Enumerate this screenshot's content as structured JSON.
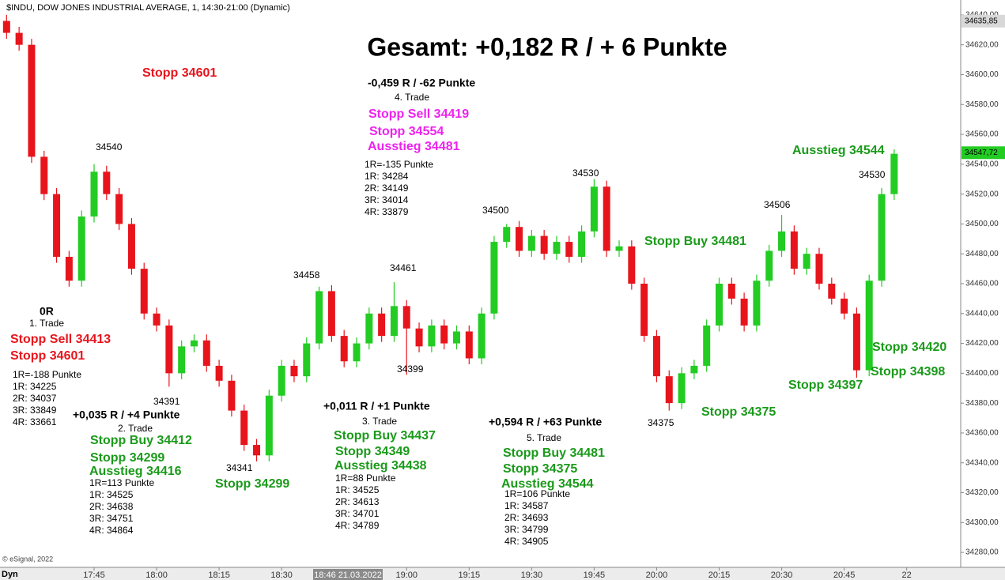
{
  "chart_data": {
    "type": "candlestick",
    "title": "Gesamt: +0,182 R / + 6 Punkte",
    "header": "$INDU, DOW JONES INDUSTRIAL AVERAGE, 1, 14:30-21:00 (Dynamic)",
    "copyright": "© eSignal, 2022",
    "mode_label": "Dyn",
    "cursor_label": "18:46 21.03.2022",
    "up_color": "#22cc22",
    "down_color": "#e8141c",
    "x": [
      "17:21",
      "17:24",
      "17:27",
      "17:30",
      "17:33",
      "17:36",
      "17:39",
      "17:42",
      "17:45",
      "17:48",
      "17:51",
      "17:54",
      "17:57",
      "18:00",
      "18:03",
      "18:06",
      "18:09",
      "18:12",
      "18:15",
      "18:18",
      "18:21",
      "18:24",
      "18:27",
      "18:30",
      "18:33",
      "18:36",
      "18:39",
      "18:42",
      "18:45",
      "18:48",
      "18:51",
      "18:54",
      "18:57",
      "19:00",
      "19:03",
      "19:06",
      "19:09",
      "19:12",
      "19:15",
      "19:18",
      "19:21",
      "19:24",
      "19:27",
      "19:30",
      "19:33",
      "19:36",
      "19:39",
      "19:42",
      "19:45",
      "19:48",
      "19:51",
      "19:54",
      "19:57",
      "20:00",
      "20:03",
      "20:06",
      "20:09",
      "20:12",
      "20:15",
      "20:18",
      "20:21",
      "20:24",
      "20:27",
      "20:30",
      "20:33",
      "20:36",
      "20:39",
      "20:42",
      "20:45",
      "20:48",
      "20:51",
      "20:54",
      "20:57"
    ],
    "open": [
      34630,
      34636,
      34628,
      34620,
      34545,
      34520,
      34478,
      34462,
      34505,
      34535,
      34520,
      34500,
      34470,
      34440,
      34432,
      34400,
      34418,
      34422,
      34405,
      34395,
      34375,
      34352,
      34345,
      34385,
      34405,
      34398,
      34420,
      34455,
      34425,
      34408,
      34420,
      34440,
      34425,
      34445,
      34430,
      34418,
      34432,
      34420,
      34428,
      34410,
      34440,
      34488,
      34498,
      34482,
      34492,
      34480,
      34488,
      34478,
      34495,
      34525,
      34482,
      34485,
      34460,
      34425,
      34398,
      34380,
      34400,
      34405,
      34432,
      34460,
      34450,
      34432,
      34462,
      34482,
      34495,
      34470,
      34480,
      34460,
      34450,
      34440,
      34402,
      34462,
      34520
    ],
    "high": [
      34640,
      34640,
      34632,
      34624,
      34549,
      34524,
      34482,
      34509,
      34540,
      34539,
      34524,
      34504,
      34474,
      34444,
      34436,
      34422,
      34426,
      34426,
      34409,
      34399,
      34379,
      34356,
      34389,
      34409,
      34409,
      34424,
      34458,
      34459,
      34429,
      34424,
      34444,
      34444,
      34461,
      34449,
      34434,
      34436,
      34436,
      34432,
      34432,
      34444,
      34492,
      34500,
      34502,
      34496,
      34496,
      34492,
      34492,
      34499,
      34530,
      34529,
      34489,
      34489,
      34464,
      34429,
      34402,
      34404,
      34409,
      34436,
      34464,
      34464,
      34454,
      34466,
      34486,
      34506,
      34499,
      34484,
      34484,
      34464,
      34454,
      34444,
      34466,
      34524,
      34550
    ],
    "low": [
      34626,
      34624,
      34616,
      34541,
      34516,
      34474,
      34458,
      34458,
      34501,
      34516,
      34496,
      34466,
      34436,
      34428,
      34391,
      34396,
      34414,
      34401,
      34391,
      34371,
      34348,
      34341,
      34341,
      34381,
      34394,
      34394,
      34416,
      34421,
      34404,
      34404,
      34416,
      34421,
      34421,
      34399,
      34414,
      34414,
      34416,
      34416,
      34406,
      34406,
      34436,
      34484,
      34478,
      34478,
      34476,
      34476,
      34474,
      34474,
      34491,
      34478,
      34478,
      34456,
      34421,
      34394,
      34375,
      34376,
      34396,
      34401,
      34428,
      34446,
      34428,
      34428,
      34458,
      34478,
      34466,
      34466,
      34456,
      34446,
      34436,
      34397,
      34398,
      34458,
      34516
    ],
    "close": [
      34636,
      34628,
      34620,
      34545,
      34520,
      34478,
      34462,
      34505,
      34535,
      34520,
      34500,
      34470,
      34440,
      34432,
      34400,
      34418,
      34422,
      34405,
      34395,
      34375,
      34352,
      34345,
      34385,
      34405,
      34398,
      34420,
      34455,
      34425,
      34408,
      34420,
      34440,
      34425,
      34445,
      34430,
      34418,
      34432,
      34420,
      34428,
      34410,
      34440,
      34488,
      34498,
      34482,
      34492,
      34480,
      34488,
      34478,
      34495,
      34525,
      34482,
      34485,
      34460,
      34425,
      34398,
      34380,
      34400,
      34405,
      34432,
      34460,
      34450,
      34432,
      34462,
      34482,
      34495,
      34470,
      34480,
      34460,
      34450,
      34440,
      34402,
      34462,
      34520,
      34547
    ],
    "ylim": [
      34270,
      34650
    ],
    "yticks": [
      {
        "value": 34280,
        "label": "34280,00"
      },
      {
        "value": 34300,
        "label": "34300,00"
      },
      {
        "value": 34320,
        "label": "34320,00"
      },
      {
        "value": 34340,
        "label": "34340,00"
      },
      {
        "value": 34360,
        "label": "34360,00"
      },
      {
        "value": 34380,
        "label": "34380,00"
      },
      {
        "value": 34400,
        "label": "34400,00"
      },
      {
        "value": 34420,
        "label": "34420,00"
      },
      {
        "value": 34440,
        "label": "34440,00"
      },
      {
        "value": 34460,
        "label": "34460,00"
      },
      {
        "value": 34480,
        "label": "34480,00"
      },
      {
        "value": 34500,
        "label": "34500,00"
      },
      {
        "value": 34520,
        "label": "34520,00"
      },
      {
        "value": 34540,
        "label": "34540,00"
      },
      {
        "value": 34560,
        "label": "34560,00"
      },
      {
        "value": 34580,
        "label": "34580,00"
      },
      {
        "value": 34600,
        "label": "34600,00"
      },
      {
        "value": 34620,
        "label": "34620,00"
      },
      {
        "value": 34640,
        "label": "34640,00"
      }
    ],
    "xticks": [
      "17:45",
      "18:00",
      "18:15",
      "18:30",
      "19:00",
      "19:15",
      "19:30",
      "19:45",
      "20:00",
      "20:15",
      "20:30",
      "20:45",
      {
        "value": "21:00",
        "label": "22"
      }
    ],
    "high_price": {
      "value": 34635.85,
      "label": "34635,85"
    },
    "last_price": {
      "value": 34547.72,
      "label": "34547,72",
      "color": "#22cc22"
    },
    "annotations": [
      {
        "text": "Stopp 34601",
        "color": "#e8141c"
      },
      {
        "text": "-0,459 R / -62 Punkte",
        "color": "#000000"
      },
      {
        "text": "4. Trade",
        "color": "#000000"
      },
      {
        "text": "Stopp Sell 34419",
        "color": "#ee22ee"
      },
      {
        "text": "Stopp 34554",
        "color": "#ee22ee"
      },
      {
        "text": "Ausstieg 34481",
        "color": "#ee22ee"
      },
      {
        "text": "1R=-135 Punkte",
        "color": "#000000"
      },
      {
        "text": "1R: 34284",
        "color": "#000000"
      },
      {
        "text": "2R: 34149",
        "color": "#000000"
      },
      {
        "text": "3R: 34014",
        "color": "#000000"
      },
      {
        "text": "4R: 33879",
        "color": "#000000"
      },
      {
        "text": "34540",
        "color": "#000000"
      },
      {
        "text": "0R",
        "color": "#000000"
      },
      {
        "text": "1. Trade",
        "color": "#000000"
      },
      {
        "text": "Stopp Sell 34413",
        "color": "#e8141c"
      },
      {
        "text": "Stopp 34601",
        "color": "#e8141c"
      },
      {
        "text": "1R=-188 Punkte",
        "color": "#000000"
      },
      {
        "text": "1R: 34225",
        "color": "#000000"
      },
      {
        "text": "2R: 34037",
        "color": "#000000"
      },
      {
        "text": "3R: 33849",
        "color": "#000000"
      },
      {
        "text": "4R: 33661",
        "color": "#000000"
      },
      {
        "text": "34391",
        "color": "#000000"
      },
      {
        "text": "+0,035 R / +4 Punkte",
        "color": "#000000"
      },
      {
        "text": "2. Trade",
        "color": "#000000"
      },
      {
        "text": "Stopp Buy 34412",
        "color": "#1a9a1a"
      },
      {
        "text": "Stopp 34299",
        "color": "#1a9a1a"
      },
      {
        "text": "Ausstieg 34416",
        "color": "#1a9a1a"
      },
      {
        "text": "1R=113 Punkte",
        "color": "#000000"
      },
      {
        "text": "1R: 34525",
        "color": "#000000"
      },
      {
        "text": "2R: 34638",
        "color": "#000000"
      },
      {
        "text": "3R: 34751",
        "color": "#000000"
      },
      {
        "text": "4R: 34864",
        "color": "#000000"
      },
      {
        "text": "34341",
        "color": "#000000"
      },
      {
        "text": "Stopp 34299",
        "color": "#1a9a1a"
      },
      {
        "text": "34458",
        "color": "#000000"
      },
      {
        "text": "34461",
        "color": "#000000"
      },
      {
        "text": "34399",
        "color": "#000000"
      },
      {
        "text": "+0,011 R / +1 Punkte",
        "color": "#000000"
      },
      {
        "text": "3. Trade",
        "color": "#000000"
      },
      {
        "text": "Stopp Buy 34437",
        "color": "#1a9a1a"
      },
      {
        "text": "Stopp 34349",
        "color": "#1a9a1a"
      },
      {
        "text": "Ausstieg 34438",
        "color": "#1a9a1a"
      },
      {
        "text": "1R=88 Punkte",
        "color": "#000000"
      },
      {
        "text": "1R: 34525",
        "color": "#000000"
      },
      {
        "text": "2R: 34613",
        "color": "#000000"
      },
      {
        "text": "3R: 34701",
        "color": "#000000"
      },
      {
        "text": "4R: 34789",
        "color": "#000000"
      },
      {
        "text": "34500",
        "color": "#000000"
      },
      {
        "text": "34530",
        "color": "#000000"
      },
      {
        "text": "+0,594 R / +63 Punkte",
        "color": "#000000"
      },
      {
        "text": "5. Trade",
        "color": "#000000"
      },
      {
        "text": "Stopp Buy 34481",
        "color": "#1a9a1a"
      },
      {
        "text": "Stopp 34375",
        "color": "#1a9a1a"
      },
      {
        "text": "Ausstieg 34544",
        "color": "#1a9a1a"
      },
      {
        "text": "1R=106 Punkte",
        "color": "#000000"
      },
      {
        "text": "1R: 34587",
        "color": "#000000"
      },
      {
        "text": "2R: 34693",
        "color": "#000000"
      },
      {
        "text": "3R: 34799",
        "color": "#000000"
      },
      {
        "text": "4R: 34905",
        "color": "#000000"
      },
      {
        "text": "34375",
        "color": "#000000"
      },
      {
        "text": "Stopp Buy 34481",
        "color": "#1a9a1a"
      },
      {
        "text": "Stopp 34375",
        "color": "#1a9a1a"
      },
      {
        "text": "34506",
        "color": "#000000"
      },
      {
        "text": "Ausstieg 34544",
        "color": "#1a9a1a"
      },
      {
        "text": "34530",
        "color": "#000000"
      },
      {
        "text": "Stopp 34420",
        "color": "#1a9a1a"
      },
      {
        "text": "Stopp 34398",
        "color": "#1a9a1a"
      },
      {
        "text": "Stopp 34397",
        "color": "#1a9a1a"
      }
    ]
  }
}
